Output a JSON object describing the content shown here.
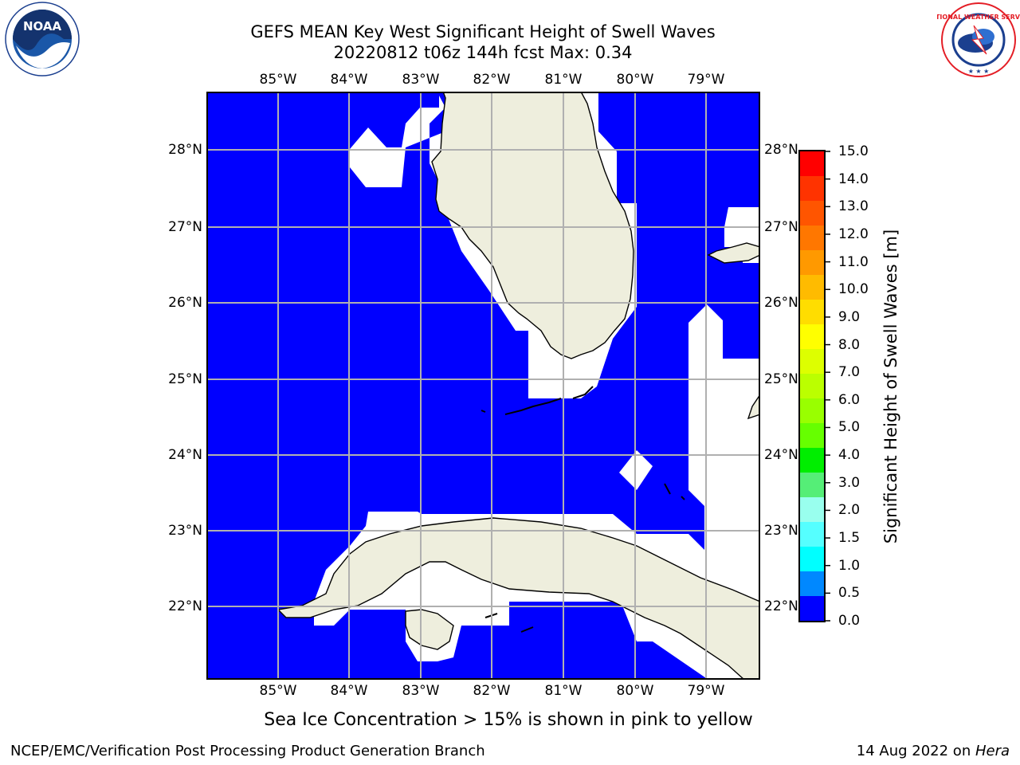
{
  "titles": {
    "line1": "GEFS MEAN Key West Significant Height of Swell Waves",
    "line2": "20220812 t06z 144h fcst   Max: 0.34"
  },
  "map": {
    "lon_labels": [
      "85°W",
      "84°W",
      "83°W",
      "82°W",
      "81°W",
      "80°W",
      "79°W"
    ],
    "lat_labels": [
      "28°N",
      "27°N",
      "26°N",
      "25°N",
      "24°N",
      "23°N",
      "22°N"
    ],
    "extent": {
      "lon": [
        -86,
        -78.3
      ],
      "lat": [
        21.0,
        28.8
      ]
    },
    "colors": {
      "water": "#0000ff",
      "land": "#eeeedd",
      "masked": "#ffffff",
      "grid": "#b0b0b0"
    }
  },
  "colorbar": {
    "label": "Significant Height of Swell Waves [m]",
    "ticks": [
      "15.0",
      "14.0",
      "13.0",
      "12.0",
      "11.0",
      "10.0",
      "9.0",
      "8.0",
      "7.0",
      "6.0",
      "5.0",
      "4.0",
      "3.0",
      "2.0",
      "1.5",
      "1.0",
      "0.5",
      "0.0"
    ],
    "colors_top_to_bottom": [
      "#ff0000",
      "#ff3300",
      "#ff5500",
      "#ff7700",
      "#ff9900",
      "#ffbb00",
      "#ffdd00",
      "#ffff00",
      "#ddff00",
      "#bbff00",
      "#99ff00",
      "#66ff00",
      "#00ee00",
      "#55ee77",
      "#99ffee",
      "#55ffff",
      "#00ffff",
      "#0088ff",
      "#0000ff"
    ]
  },
  "note": "Sea Ice Concentration > 15% is shown in pink to yellow",
  "footer": {
    "left": "NCEP/EMC/Verification Post Processing Product Generation Branch",
    "date": "14 Aug 2022 on ",
    "machine": "Hera"
  },
  "logos": {
    "noaa": "NOAA",
    "noaa_ring": "NATIONAL OCEANIC AND ATMOSPHERIC ADMINISTRATION · U.S. DEPARTMENT OF COMMERCE",
    "nws": "NATIONAL WEATHER SERVICE"
  }
}
